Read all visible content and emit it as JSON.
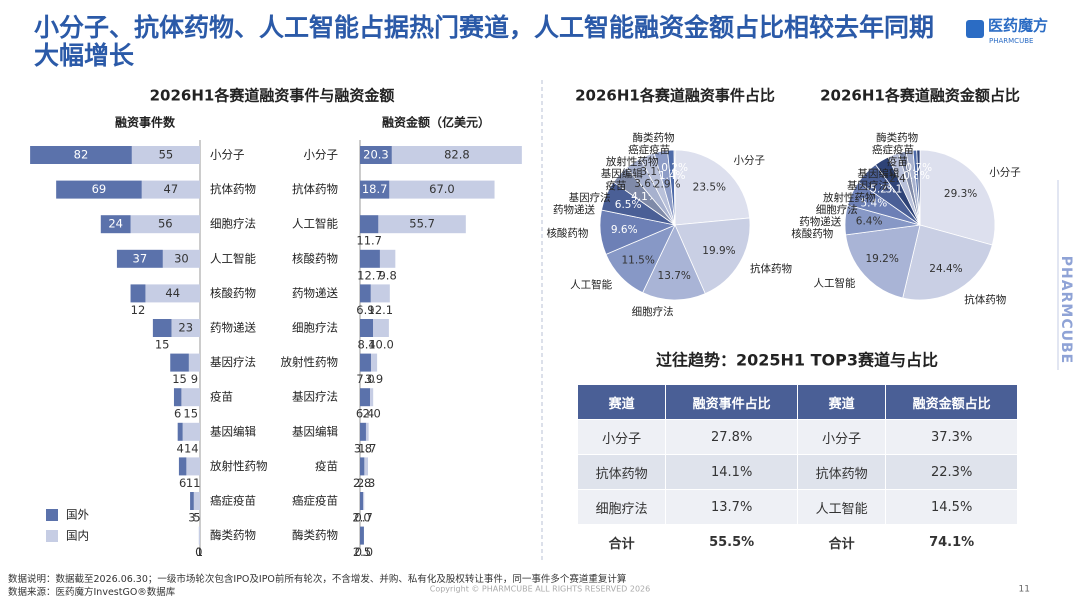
{
  "header": {
    "title": "小分子、抗体药物、人工智能占据热门赛道，人工智能融资金额占比相较去年同期大幅增长",
    "logo": "医药魔方",
    "logo_sub": "PHARMCUBE"
  },
  "side_label": "PHARMCUBE",
  "chart_data": [
    {
      "type": "bar",
      "orientation": "horizontal",
      "direction": "left",
      "title": "2026H1各赛道融资事件与融资金额",
      "axis_title": "融资事件数",
      "categories": [
        "小分子",
        "抗体药物",
        "细胞疗法",
        "人工智能",
        "核酸药物",
        "药物递送",
        "基因疗法",
        "疫苗",
        "基因编辑",
        "放射性药物",
        "癌症疫苗",
        "酶类药物"
      ],
      "series": [
        {
          "name": "国外",
          "color": "#5b72ab",
          "values": [
            82,
            69,
            24,
            37,
            12,
            15,
            15,
            6,
            4,
            6,
            3,
            0
          ]
        },
        {
          "name": "国内",
          "color": "#c6cde4",
          "values": [
            55,
            47,
            56,
            30,
            44,
            23,
            9,
            15,
            14,
            11,
            5,
            1
          ]
        }
      ],
      "legend": "bottom-left"
    },
    {
      "type": "bar",
      "orientation": "horizontal",
      "direction": "right",
      "axis_title": "融资金额（亿美元）",
      "categories": [
        "小分子",
        "抗体药物",
        "人工智能",
        "核酸药物",
        "药物递送",
        "细胞疗法",
        "放射性药物",
        "基因疗法",
        "基因编辑",
        "疫苗",
        "癌症疫苗",
        "酶类药物"
      ],
      "series": [
        {
          "color": "#5b72ab",
          "values": [
            20.3,
            18.7,
            11.7,
            12.7,
            6.9,
            8.4,
            7.0,
            6.4,
            3.8,
            2.8,
            2.0,
            2.5
          ],
          "value_labels": [
            "20.3",
            "18.7",
            "11.7",
            "12.7",
            "6.9",
            "8.4",
            "7.0",
            "6.4",
            "3.8",
            "2.8",
            "2.0",
            "2.5"
          ]
        },
        {
          "color": "#c6cde4",
          "values": [
            82.8,
            67.0,
            55.7,
            9.8,
            12.1,
            10.0,
            3.9,
            2.0,
            1.7,
            2.3,
            0.7,
            0.0
          ],
          "value_labels": [
            "82.8",
            "67.0",
            "55.7",
            "9.8",
            "12.1",
            "10.0",
            "3.9",
            "2.0",
            "1.7",
            "2.3",
            "0.7",
            "0.0"
          ]
        }
      ]
    },
    {
      "type": "pie",
      "title": "2026H1各赛道融资事件占比",
      "categories": [
        "小分子",
        "抗体药物",
        "细胞疗法",
        "人工智能",
        "核酸药物",
        "药物递送",
        "基因疗法",
        "疫苗",
        "基因编辑",
        "放射性药物",
        "癌症疫苗",
        "酶类药物"
      ],
      "values": [
        23.5,
        19.9,
        13.7,
        11.5,
        9.6,
        6.5,
        4.1,
        3.6,
        3.1,
        2.9,
        1.4,
        0.2
      ],
      "value_labels": [
        "23.5%",
        "19.9%",
        "13.7%",
        "11.5%",
        "9.6%",
        "6.5%",
        "4.1%",
        "3.6%",
        "3.1%",
        "2.9%",
        "1.4%",
        "0.2%"
      ],
      "colors": [
        "#dde0ee",
        "#c9cfe4",
        "#a9b4d6",
        "#8798c6",
        "#6d80b6",
        "#4a5f96",
        "#7f8aa8",
        "#a7b1ce",
        "#b9c1da",
        "#8d9cc6",
        "#4d6aa8",
        "#2e4377"
      ]
    },
    {
      "type": "pie",
      "title": "2026H1各赛道融资金额占比",
      "categories": [
        "小分子",
        "抗体药物",
        "人工智能",
        "核酸药物",
        "药物递送",
        "细胞疗法",
        "放射性药物",
        "基因疗法",
        "基因编辑",
        "疫苗",
        "癌症疫苗",
        "酶类药物"
      ],
      "values": [
        29.3,
        24.4,
        19.2,
        6.4,
        5.4,
        5.2,
        3.1,
        2.4,
        1.6,
        1.5,
        0.8,
        0.7
      ],
      "value_labels": [
        "29.3%",
        "24.4%",
        "19.2%",
        "6.4%",
        "5.4%",
        "5.2%",
        "3.1%",
        "2.4%",
        null,
        null,
        "0.8%",
        "0.7%"
      ],
      "colors": [
        "#dde0ee",
        "#c9cfe4",
        "#a9b4d6",
        "#8798c6",
        "#6d80b6",
        "#4a5f96",
        "#2e4377",
        "#b9c1da",
        "#7f8aa8",
        "#a7b1ce",
        "#4d6aa8",
        "#2e4377"
      ]
    }
  ],
  "table": {
    "title": "过往趋势：2025H1 TOP3赛道与占比",
    "header": [
      "赛道",
      "融资事件占比",
      "赛道",
      "融资金额占比"
    ],
    "rows": [
      [
        "小分子",
        "27.8%",
        "小分子",
        "37.3%"
      ],
      [
        "抗体药物",
        "14.1%",
        "抗体药物",
        "22.3%"
      ],
      [
        "细胞疗法",
        "13.7%",
        "人工智能",
        "14.5%"
      ],
      [
        "合计",
        "55.5%",
        "合计",
        "74.1%"
      ]
    ]
  },
  "footer": {
    "note": "数据说明：数据截至2026.06.30；一级市场轮次包含IPO及IPO前所有轮次，不含增发、并购、私有化及股权转让事件，同一事件多个赛道重复计算",
    "source": "数据来源：医药魔方InvestGO®数据库",
    "copyright": "Copyright © PHARMCUBE ALL RIGHTS RESERVED 2026",
    "page": 11
  }
}
